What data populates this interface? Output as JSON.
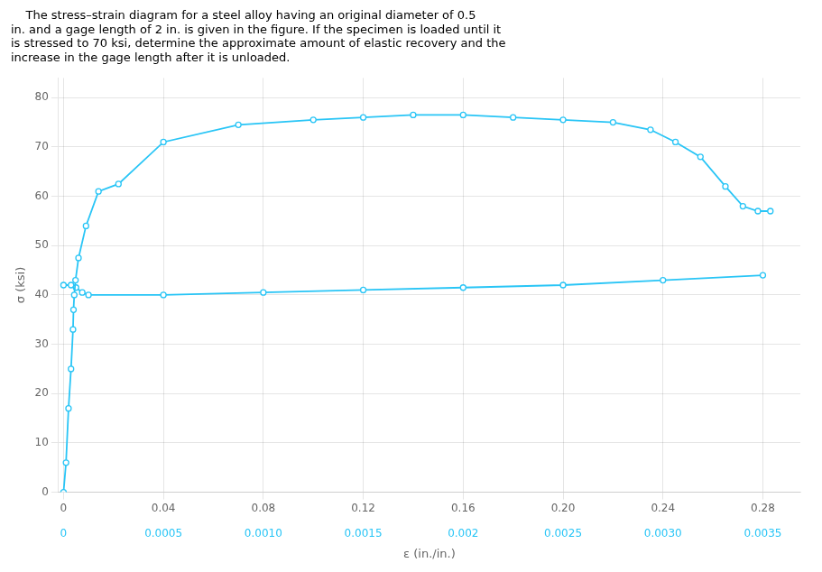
{
  "chart_data": {
    "type": "line",
    "title": "    The stress–strain diagram for a steel alloy having an original diameter of 0.5\nin. and a gage length of 2 in. is given in the figure. If the specimen is loaded until it\nis stressed to 70 ksi, determine the approximate amount of elastic recovery and the\nincrease in the gage length after it is unloaded.",
    "xlabel": "ε (in./in.)",
    "ylabel": "σ (ksi)",
    "color": "#29C5F6",
    "marker": "circle",
    "line_style": "solid",
    "grid": true,
    "xlim": [
      -0.002,
      0.295
    ],
    "xticks": [
      0,
      0.04,
      0.08,
      0.12,
      0.16,
      {
        "value": 0.2,
        "label": "0.20"
      },
      0.24,
      0.28
    ],
    "x2lim": [
      -2.5e-05,
      0.0036875
    ],
    "x2ticks": [
      0,
      0.0005,
      {
        "value": 0.001,
        "label": "0.0010"
      },
      0.0015,
      0.002,
      0.0025,
      {
        "value": 0.003,
        "label": "0.0030"
      },
      0.0035
    ],
    "ylim": [
      0,
      84
    ],
    "yticks": [
      0,
      10,
      20,
      30,
      40,
      50,
      60,
      70,
      80
    ],
    "series": [
      {
        "x": [
          0.0,
          0.001,
          0.002,
          0.003,
          0.0038,
          0.004,
          0.0043,
          0.0048,
          0.006,
          0.009,
          0.014,
          0.022,
          0.04,
          0.07,
          0.1,
          0.12,
          0.14,
          0.16,
          0.18,
          0.2,
          0.22,
          0.235,
          0.245,
          0.255,
          0.265,
          0.272,
          0.278,
          0.283
        ],
        "values": [
          0.0,
          6.0,
          17.0,
          25.0,
          33.0,
          37.0,
          40.0,
          43.0,
          47.5,
          54.0,
          61.0,
          62.5,
          71.0,
          74.5,
          75.5,
          76.0,
          76.5,
          76.5,
          76.0,
          75.5,
          75.0,
          73.5,
          71.0,
          68.0,
          62.0,
          58.0,
          57.0,
          57.0
        ]
      },
      {
        "x": [
          0.0,
          0.003,
          0.005,
          0.0075,
          0.01,
          0.04,
          0.08,
          0.12,
          0.16,
          0.2,
          0.24,
          0.28
        ],
        "values": [
          42.0,
          42.0,
          41.5,
          40.5,
          40.0,
          40.0,
          40.5,
          41.0,
          41.5,
          42.0,
          43.0,
          44.0
        ]
      }
    ]
  }
}
